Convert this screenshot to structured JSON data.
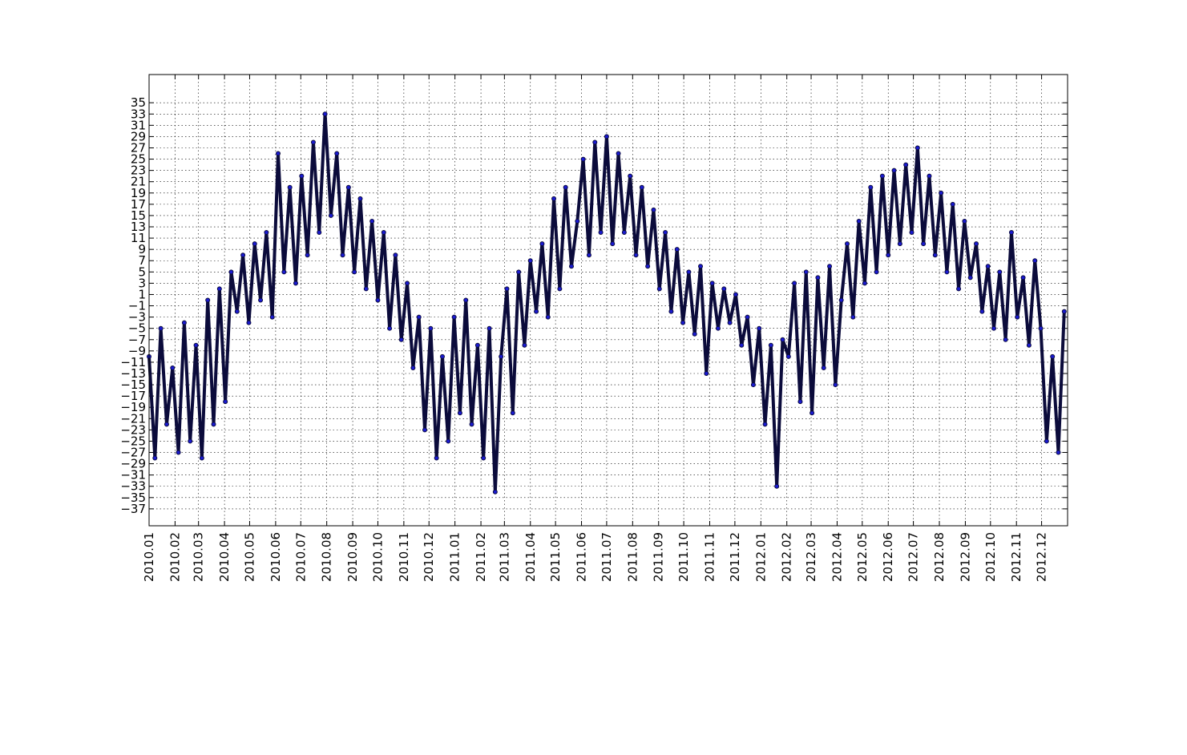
{
  "chart_data": {
    "type": "line",
    "xlim": [
      0,
      1096
    ],
    "xticks": [
      {
        "value": 0,
        "label": "2010.01"
      },
      {
        "value": 31,
        "label": "2010.02"
      },
      {
        "value": 59,
        "label": "2010.03"
      },
      {
        "value": 90,
        "label": "2010.04"
      },
      {
        "value": 120,
        "label": "2010.05"
      },
      {
        "value": 151,
        "label": "2010.06"
      },
      {
        "value": 181,
        "label": "2010.07"
      },
      {
        "value": 212,
        "label": "2010.08"
      },
      {
        "value": 243,
        "label": "2010.09"
      },
      {
        "value": 273,
        "label": "2010.10"
      },
      {
        "value": 304,
        "label": "2010.11"
      },
      {
        "value": 334,
        "label": "2010.12"
      },
      {
        "value": 365,
        "label": "2011.01"
      },
      {
        "value": 396,
        "label": "2011.02"
      },
      {
        "value": 424,
        "label": "2011.03"
      },
      {
        "value": 455,
        "label": "2011.04"
      },
      {
        "value": 485,
        "label": "2011.05"
      },
      {
        "value": 516,
        "label": "2011.06"
      },
      {
        "value": 546,
        "label": "2011.07"
      },
      {
        "value": 577,
        "label": "2011.08"
      },
      {
        "value": 608,
        "label": "2011.09"
      },
      {
        "value": 638,
        "label": "2011.10"
      },
      {
        "value": 669,
        "label": "2011.11"
      },
      {
        "value": 699,
        "label": "2011.12"
      },
      {
        "value": 730,
        "label": "2012.01"
      },
      {
        "value": 761,
        "label": "2012.02"
      },
      {
        "value": 790,
        "label": "2012.03"
      },
      {
        "value": 821,
        "label": "2012.04"
      },
      {
        "value": 851,
        "label": "2012.05"
      },
      {
        "value": 882,
        "label": "2012.06"
      },
      {
        "value": 912,
        "label": "2012.07"
      },
      {
        "value": 943,
        "label": "2012.08"
      },
      {
        "value": 974,
        "label": "2012.09"
      },
      {
        "value": 1004,
        "label": "2012.10"
      },
      {
        "value": 1035,
        "label": "2012.11"
      },
      {
        "value": 1065,
        "label": "2012.12"
      }
    ],
    "ylim": [
      -40,
      40
    ],
    "yticks": [
      {
        "value": -37,
        "label": "−37"
      },
      {
        "value": -35,
        "label": "−35"
      },
      {
        "value": -33,
        "label": "−33"
      },
      {
        "value": -31,
        "label": "−31"
      },
      {
        "value": -29,
        "label": "−29"
      },
      {
        "value": -27,
        "label": "−27"
      },
      {
        "value": -25,
        "label": "−25"
      },
      {
        "value": -23,
        "label": "−23"
      },
      {
        "value": -21,
        "label": "−21"
      },
      {
        "value": -19,
        "label": "−19"
      },
      {
        "value": -17,
        "label": "−17"
      },
      {
        "value": -15,
        "label": "−15"
      },
      {
        "value": -13,
        "label": "−13"
      },
      {
        "value": -11,
        "label": "−11"
      },
      {
        "value": -9,
        "label": "−9"
      },
      {
        "value": -7,
        "label": "−7"
      },
      {
        "value": -5,
        "label": "−5"
      },
      {
        "value": -3,
        "label": "−3"
      },
      {
        "value": -1,
        "label": "−1"
      },
      1,
      3,
      5,
      7,
      9,
      11,
      13,
      15,
      17,
      19,
      21,
      23,
      25,
      27,
      29,
      31,
      33,
      35
    ],
    "grid": true,
    "line_color": "#0b0b3b",
    "marker_color": "#1a1ad0",
    "x": [
      0,
      7,
      14,
      21,
      28,
      35,
      42,
      49,
      56,
      63,
      70,
      77,
      84,
      91,
      98,
      105,
      112,
      119,
      126,
      133,
      140,
      147,
      154,
      161,
      168,
      175,
      182,
      189,
      196,
      203,
      210,
      217,
      224,
      231,
      238,
      245,
      252,
      259,
      266,
      273,
      280,
      287,
      294,
      301,
      308,
      315,
      322,
      329,
      336,
      343,
      350,
      357,
      364,
      371,
      378,
      385,
      392,
      399,
      406,
      413,
      420,
      427,
      434,
      441,
      448,
      455,
      462,
      469,
      476,
      483,
      490,
      497,
      504,
      511,
      518,
      525,
      532,
      539,
      546,
      553,
      560,
      567,
      574,
      581,
      588,
      595,
      602,
      609,
      616,
      623,
      630,
      637,
      644,
      651,
      658,
      665,
      672,
      679,
      686,
      693,
      700,
      707,
      714,
      721,
      728,
      735,
      742,
      749,
      756,
      763,
      770,
      777,
      784,
      791,
      798,
      805,
      812,
      819,
      826,
      833,
      840,
      847,
      854,
      861,
      868,
      875,
      882,
      889,
      896,
      903,
      910,
      917,
      924,
      931,
      938,
      945,
      952,
      959,
      966,
      973,
      980,
      987,
      994,
      1001,
      1008,
      1015,
      1022,
      1029,
      1036,
      1043,
      1050,
      1057,
      1064,
      1071,
      1078,
      1085,
      1092
    ],
    "values": [
      -10,
      -28,
      -5,
      -22,
      -12,
      -27,
      -4,
      -25,
      -8,
      -28,
      0,
      -22,
      2,
      -18,
      5,
      -2,
      8,
      -4,
      10,
      0,
      12,
      -3,
      26,
      5,
      20,
      3,
      22,
      8,
      28,
      12,
      33,
      15,
      26,
      8,
      20,
      5,
      18,
      2,
      14,
      0,
      12,
      -5,
      8,
      -7,
      3,
      -12,
      -3,
      -23,
      -5,
      -28,
      -10,
      -25,
      -3,
      -20,
      0,
      -22,
      -8,
      -28,
      -5,
      -34,
      -10,
      2,
      -20,
      5,
      -8,
      7,
      -2,
      10,
      -3,
      18,
      2,
      20,
      6,
      14,
      25,
      8,
      28,
      12,
      29,
      10,
      26,
      12,
      22,
      8,
      20,
      6,
      16,
      2,
      12,
      -2,
      9,
      -4,
      5,
      -6,
      6,
      -13,
      3,
      -5,
      2,
      -4,
      1,
      -8,
      -3,
      -15,
      -5,
      -22,
      -8,
      -33,
      -7,
      -10,
      3,
      -18,
      5,
      -20,
      4,
      -12,
      6,
      -15,
      0,
      10,
      -3,
      14,
      3,
      20,
      5,
      22,
      8,
      23,
      10,
      24,
      12,
      27,
      10,
      22,
      8,
      19,
      5,
      17,
      2,
      14,
      4,
      10,
      -2,
      6,
      -5,
      5,
      -7,
      12,
      -3,
      4,
      -8,
      7,
      -5,
      -25,
      -10,
      -27,
      -2
    ]
  }
}
